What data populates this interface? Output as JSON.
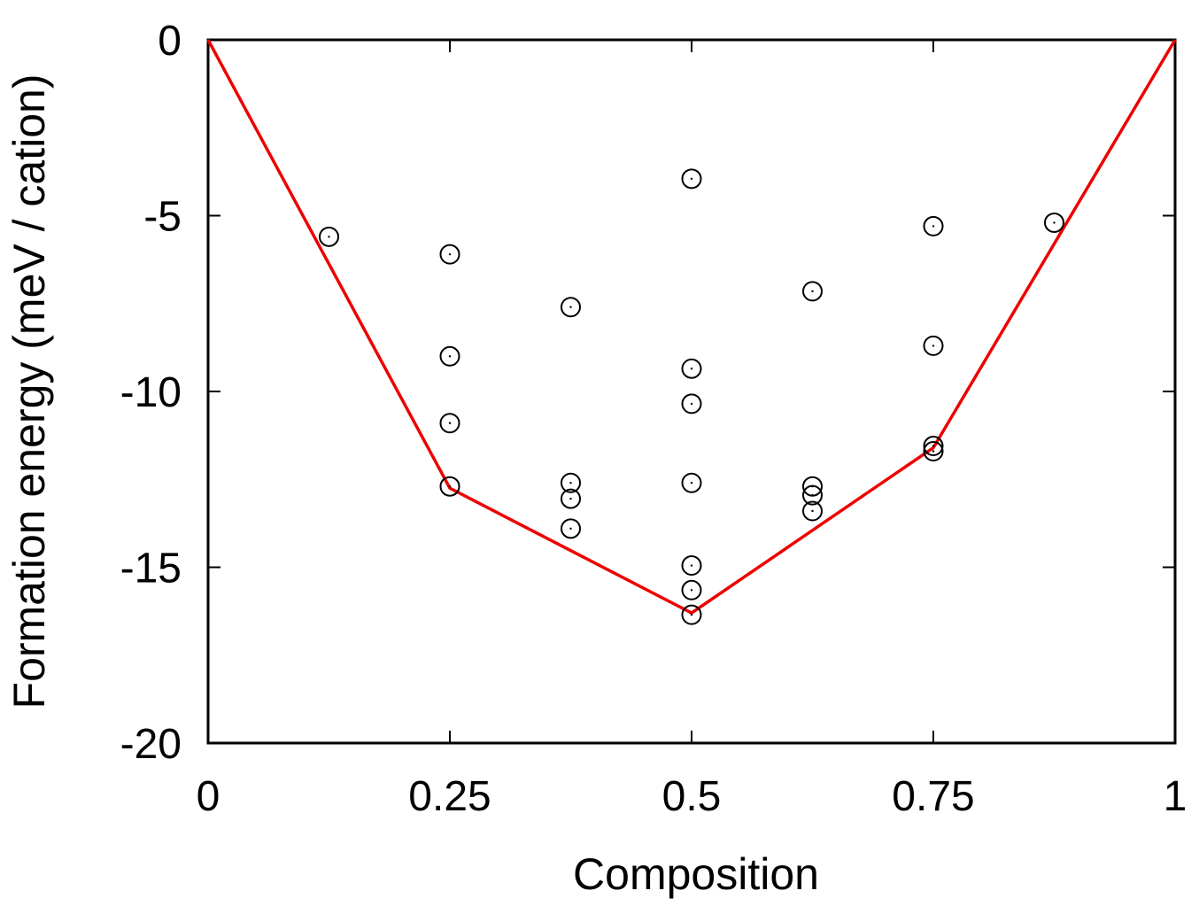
{
  "chart_data": {
    "type": "scatter",
    "title": "",
    "xlabel": "Composition",
    "ylabel": "Formation energy (meV / cation)",
    "xlim": [
      0,
      1
    ],
    "ylim": [
      -20,
      0
    ],
    "x_ticks": [
      {
        "value": 0,
        "label": "0"
      },
      {
        "value": 0.25,
        "label": "0.25"
      },
      {
        "value": 0.5,
        "label": "0.5"
      },
      {
        "value": 0.75,
        "label": "0.75"
      },
      {
        "value": 1,
        "label": "1"
      }
    ],
    "y_ticks": [
      {
        "value": 0,
        "label": "0"
      },
      {
        "value": -5,
        "label": "-5"
      },
      {
        "value": -10,
        "label": "-10"
      },
      {
        "value": -15,
        "label": "-15"
      },
      {
        "value": -20,
        "label": "-20"
      }
    ],
    "grid": false,
    "legend": "none",
    "series": [
      {
        "kind": "points",
        "marker": "open-circle",
        "color": "#000000",
        "points": [
          {
            "x": 0.125,
            "y": -5.6
          },
          {
            "x": 0.25,
            "y": -6.1
          },
          {
            "x": 0.25,
            "y": -9.0
          },
          {
            "x": 0.25,
            "y": -10.9
          },
          {
            "x": 0.25,
            "y": -12.7
          },
          {
            "x": 0.375,
            "y": -7.6
          },
          {
            "x": 0.375,
            "y": -12.6
          },
          {
            "x": 0.375,
            "y": -13.05
          },
          {
            "x": 0.375,
            "y": -13.9
          },
          {
            "x": 0.5,
            "y": -3.95
          },
          {
            "x": 0.5,
            "y": -9.35
          },
          {
            "x": 0.5,
            "y": -10.35
          },
          {
            "x": 0.5,
            "y": -12.6
          },
          {
            "x": 0.5,
            "y": -14.95
          },
          {
            "x": 0.5,
            "y": -15.65
          },
          {
            "x": 0.5,
            "y": -16.35
          },
          {
            "x": 0.625,
            "y": -7.15
          },
          {
            "x": 0.625,
            "y": -12.7
          },
          {
            "x": 0.625,
            "y": -12.95
          },
          {
            "x": 0.625,
            "y": -13.4
          },
          {
            "x": 0.75,
            "y": -5.3
          },
          {
            "x": 0.75,
            "y": -8.7
          },
          {
            "x": 0.75,
            "y": -11.55
          },
          {
            "x": 0.75,
            "y": -11.7
          },
          {
            "x": 0.875,
            "y": -5.2
          }
        ]
      },
      {
        "kind": "line",
        "color": "#ee0000",
        "points": [
          {
            "x": 0,
            "y": 0
          },
          {
            "x": 0.25,
            "y": -12.75
          },
          {
            "x": 0.5,
            "y": -16.3
          },
          {
            "x": 0.75,
            "y": -11.6
          },
          {
            "x": 1,
            "y": 0
          }
        ]
      }
    ]
  }
}
